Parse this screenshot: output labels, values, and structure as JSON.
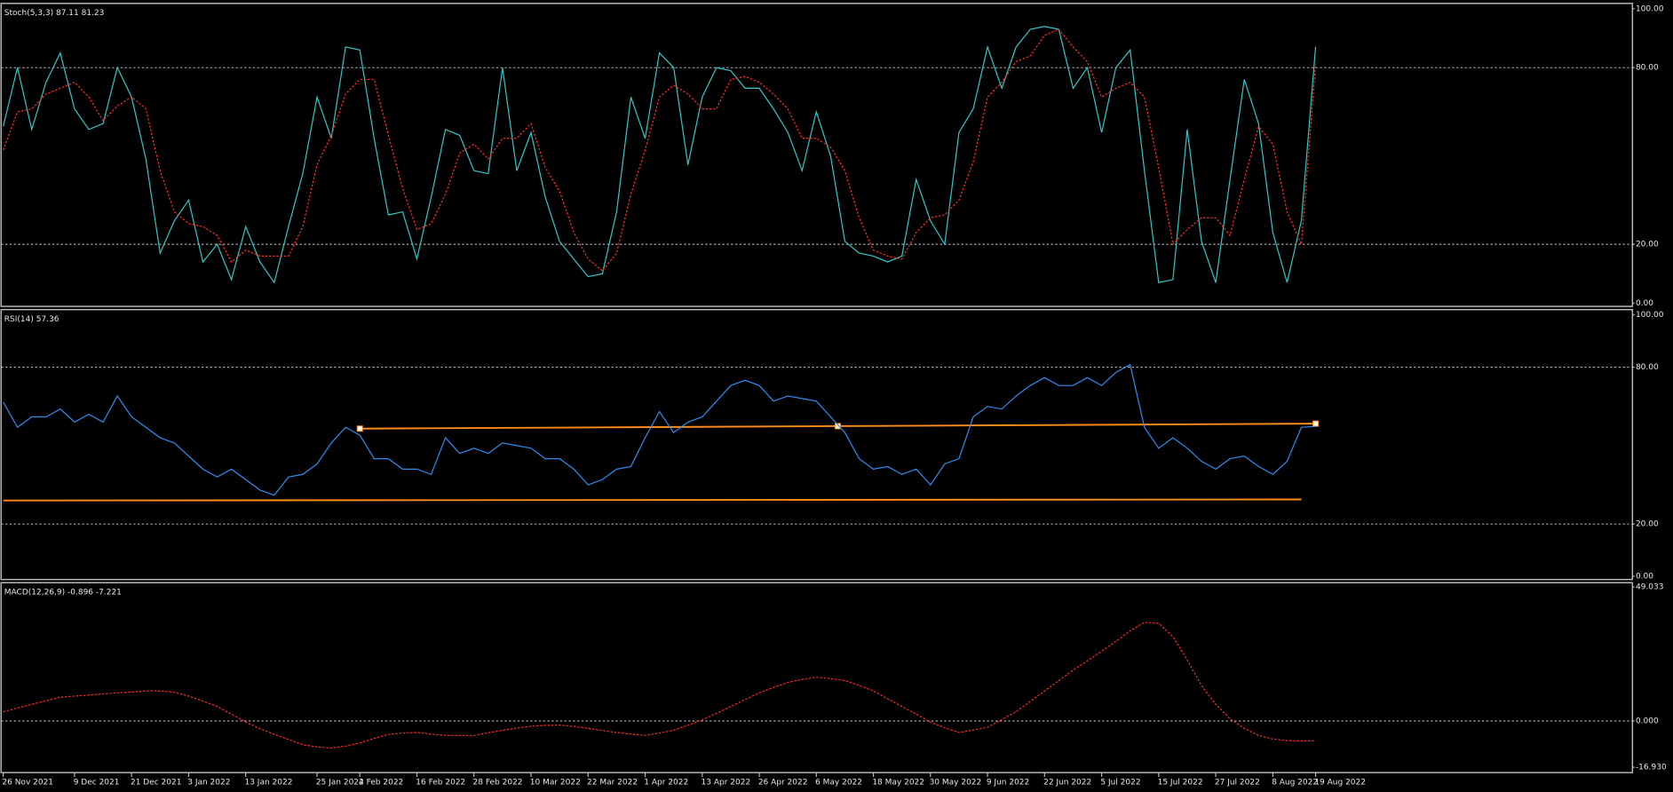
{
  "chart_data": [
    {
      "type": "line",
      "title": "Stoch(5,3,3) 87.11 81.23",
      "ylim": [
        0,
        100
      ],
      "yticks": [
        {
          "value": 100,
          "label": "100.00"
        },
        {
          "value": 80,
          "label": "80.00"
        },
        {
          "value": 20,
          "label": "20.00"
        },
        {
          "value": 0,
          "label": "0.00"
        }
      ],
      "grid": true,
      "series": [
        {
          "color": "#33c7c7",
          "style": "solid",
          "values": [
            60,
            80,
            59,
            75,
            85,
            66,
            59,
            61,
            80,
            70,
            49,
            17,
            28,
            35,
            14,
            20,
            8,
            26,
            14,
            7,
            26,
            44,
            70,
            56,
            87,
            86,
            56,
            30,
            31,
            15,
            36,
            59,
            57,
            45,
            44,
            80,
            45,
            58,
            36,
            21,
            15,
            9,
            10,
            31,
            70,
            56,
            85,
            80,
            47,
            70,
            80,
            79,
            73,
            73,
            66,
            58,
            45,
            65,
            50,
            21,
            17,
            16,
            14,
            16,
            42,
            28,
            20,
            58,
            66,
            87,
            73,
            87,
            93,
            94,
            93,
            73,
            80,
            58,
            80,
            86,
            45,
            7,
            8,
            59,
            21,
            7,
            42,
            76,
            61,
            24,
            7,
            28,
            87.11
          ]
        },
        {
          "color": "#ff2a2a",
          "style": "dotted",
          "values": [
            52,
            65,
            66,
            71,
            73,
            75,
            70,
            62,
            67,
            70,
            66,
            45,
            31,
            27,
            26,
            23,
            14,
            18,
            16,
            16,
            16,
            26,
            47,
            57,
            71,
            76,
            76,
            57,
            39,
            25,
            27,
            37,
            51,
            54,
            49,
            56,
            56,
            61,
            46,
            38,
            24,
            15,
            11,
            17,
            37,
            52,
            70,
            74,
            71,
            66,
            66,
            76,
            77,
            75,
            71,
            66,
            56,
            56,
            53,
            45,
            29,
            18,
            16,
            15,
            24,
            29,
            30,
            35,
            48,
            70,
            75,
            82,
            84,
            91,
            93,
            87,
            82,
            70,
            73,
            75,
            70,
            46,
            20,
            25,
            29,
            29,
            23,
            42,
            60,
            54,
            31,
            20,
            81.23
          ]
        }
      ]
    },
    {
      "type": "line",
      "title": "RSI(14) 57.36",
      "ylim": [
        0,
        100
      ],
      "yticks": [
        {
          "value": 100,
          "label": "100.00"
        },
        {
          "value": 80,
          "label": "80.00"
        },
        {
          "value": 20,
          "label": "20.00"
        },
        {
          "value": 0,
          "label": "0.00"
        }
      ],
      "grid": true,
      "series": [
        {
          "color": "#2f8cf0",
          "style": "solid",
          "values": [
            66.7,
            57,
            61,
            61,
            64,
            59,
            62,
            59,
            69,
            61,
            57,
            53,
            51,
            46,
            41,
            38,
            41,
            37,
            33,
            31,
            38,
            39,
            43,
            51,
            57,
            54,
            45,
            45,
            41,
            41,
            39,
            53,
            47,
            49,
            47,
            51,
            50,
            49,
            45,
            45,
            41,
            35,
            37,
            41,
            42,
            53,
            63,
            55,
            59,
            61,
            67,
            73,
            75,
            73,
            67,
            69,
            68,
            67,
            61,
            55,
            45,
            41,
            42,
            39,
            41,
            35,
            43,
            45,
            61,
            65,
            64,
            69,
            73,
            76,
            73,
            73,
            76,
            73,
            78,
            81,
            57,
            49,
            53,
            49,
            44,
            41,
            45,
            46,
            42,
            39,
            44,
            57,
            57.36
          ]
        }
      ],
      "trendlines": [
        {
          "color": "#ff8c1a",
          "values": [
            56.5,
            58.4
          ]
        },
        {
          "color": "#ff8c1a",
          "values": [
            29,
            29.4
          ]
        }
      ]
    },
    {
      "type": "line",
      "title": "MACD(12,26,9) -0.896 -7.221",
      "ylim": [
        -16.93,
        49.033
      ],
      "yticks": [
        49.033,
        {
          "value": 0,
          "label": "0.000"
        },
        {
          "value": -16.93,
          "label": "-16.930"
        }
      ],
      "grid": true,
      "categories": [
        "26 Nov 2021",
        null,
        null,
        null,
        null,
        "9 Dec 2021",
        null,
        null,
        null,
        "21 Dec 2021",
        null,
        null,
        null,
        "3 Jan 2022",
        null,
        null,
        null,
        "13 Jan 2022",
        null,
        null,
        null,
        null,
        "25 Jan 2022",
        null,
        null,
        "4 Feb 2022",
        null,
        null,
        null,
        "16 Feb 2022",
        null,
        null,
        null,
        "28 Feb 2022",
        null,
        null,
        null,
        "10 Mar 2022",
        null,
        null,
        null,
        "22 Mar 2022",
        null,
        null,
        null,
        "1 Apr 2022",
        null,
        null,
        null,
        "13 Apr 2022",
        null,
        null,
        null,
        "26 Apr 2022",
        null,
        null,
        null,
        "6 May 2022",
        null,
        null,
        null,
        "18 May 2022",
        null,
        null,
        null,
        "30 May 2022",
        null,
        null,
        null,
        "9 Jun 2022",
        null,
        null,
        null,
        "22 Jun 2022",
        null,
        null,
        null,
        "5 Jul 2022",
        null,
        null,
        null,
        "15 Jul 2022",
        null,
        null,
        null,
        "27 Jul 2022",
        null,
        null,
        null,
        "8 Aug 2022",
        null,
        null,
        "19 Aug 2022"
      ],
      "series": [
        {
          "color": "#ff2a2a",
          "style": "dotted",
          "values": [
            3.4,
            4.7,
            6.1,
            7.4,
            8.7,
            9.1,
            9.5,
            9.9,
            10.3,
            10.6,
            11,
            11,
            10.5,
            9.1,
            7.3,
            5.3,
            2.5,
            -0.4,
            -2.8,
            -4.9,
            -6.8,
            -8.7,
            -9.5,
            -9.9,
            -9.2,
            -8,
            -6.4,
            -4.9,
            -4.4,
            -4.2,
            -4.8,
            -5.3,
            -5.3,
            -5.3,
            -4.3,
            -3.4,
            -2.6,
            -1.9,
            -1.6,
            -1.5,
            -2,
            -2.7,
            -3.5,
            -4.2,
            -4.8,
            -5.3,
            -4.4,
            -3.4,
            -1.5,
            0.4,
            2.8,
            5.3,
            7.8,
            10.3,
            12.3,
            14.1,
            15.2,
            16,
            15.5,
            14.8,
            13,
            11,
            8.1,
            5.3,
            2.5,
            -0.4,
            -2.5,
            -4.2,
            -3.3,
            -2.3,
            0.5,
            3.4,
            7.2,
            11,
            14.8,
            18.6,
            22,
            25.5,
            29.2,
            33,
            36.1,
            35.7,
            30.8,
            22.4,
            12.9,
            6.1,
            0.8,
            -2.7,
            -5.3,
            -6.6,
            -7.2,
            -7.3,
            -7.221
          ]
        }
      ]
    }
  ]
}
